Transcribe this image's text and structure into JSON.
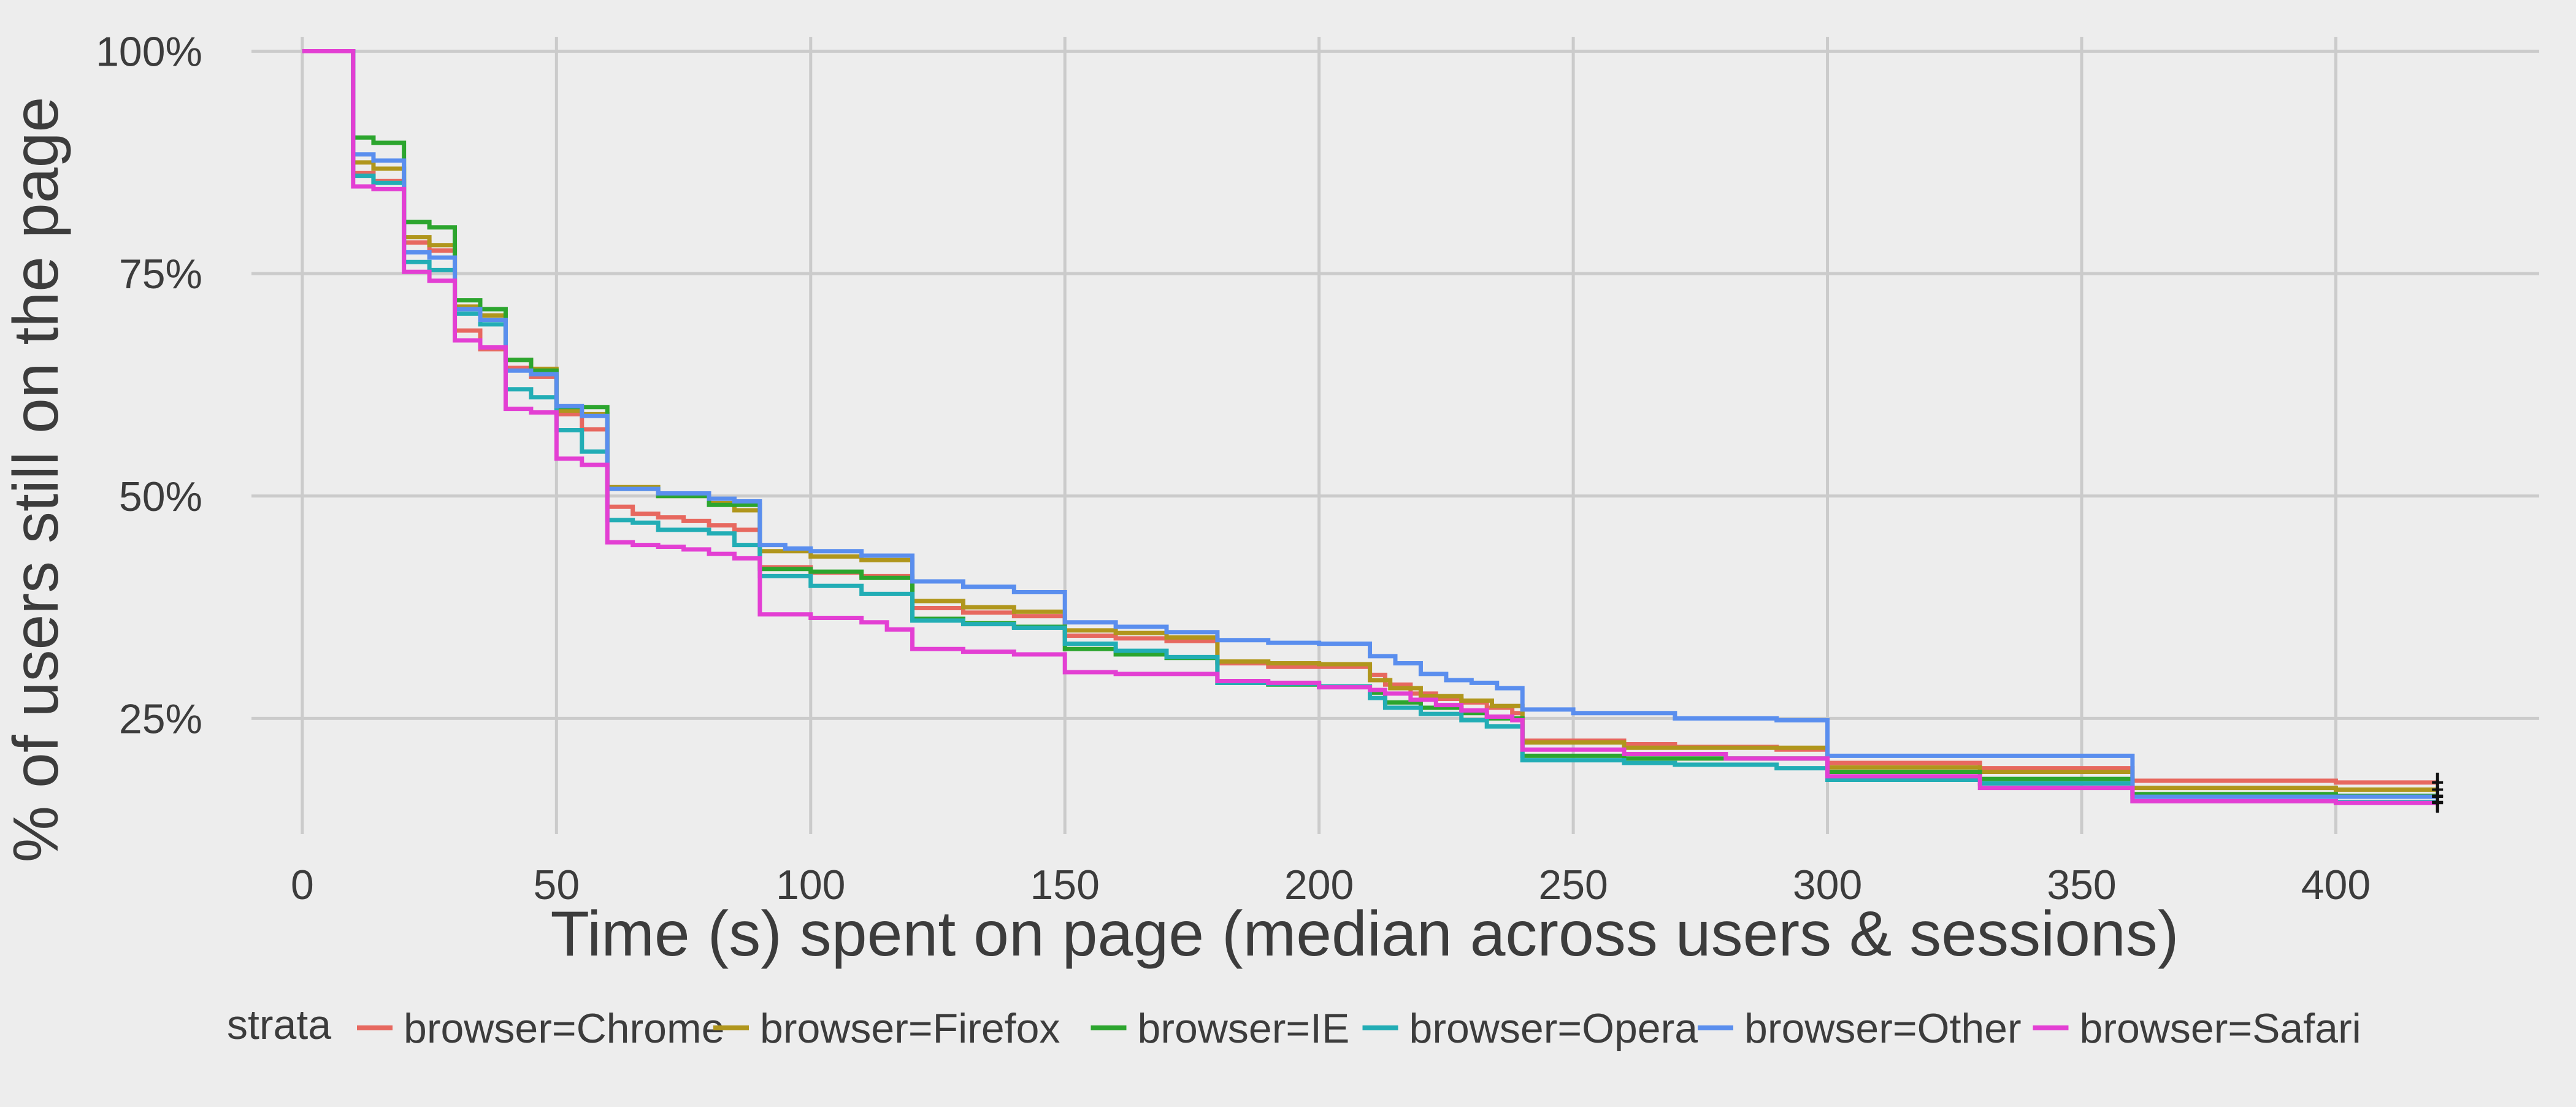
{
  "chart_data": {
    "type": "line",
    "title": "",
    "xlabel": "Time (s) spent on page (median across users & sessions)",
    "ylabel": "% of users still on the page",
    "xlim": [
      -10,
      440
    ],
    "ylim": [
      0.12,
      1.03
    ],
    "x_ticks": [
      0,
      50,
      100,
      150,
      200,
      250,
      300,
      350,
      400
    ],
    "y_ticks": [
      0.25,
      0.5,
      0.75,
      1.0
    ],
    "y_tick_labels": [
      "25%",
      "50%",
      "75%",
      "100%"
    ],
    "x_end": 420,
    "grid": true,
    "legend_position": "bottom",
    "legend_title": "strata",
    "series": [
      {
        "name": "browser=Chrome",
        "color": "#E7685F",
        "steps": [
          [
            0,
            1.0
          ],
          [
            10,
            0.863
          ],
          [
            14,
            0.854
          ],
          [
            20,
            0.785
          ],
          [
            25,
            0.776
          ],
          [
            30,
            0.686
          ],
          [
            35,
            0.665
          ],
          [
            40,
            0.644
          ],
          [
            45,
            0.634
          ],
          [
            50,
            0.592
          ],
          [
            55,
            0.575
          ],
          [
            60,
            0.488
          ],
          [
            65,
            0.48
          ],
          [
            70,
            0.476
          ],
          [
            75,
            0.472
          ],
          [
            80,
            0.467
          ],
          [
            85,
            0.462
          ],
          [
            90,
            0.42
          ],
          [
            100,
            0.414
          ],
          [
            110,
            0.41
          ],
          [
            120,
            0.374
          ],
          [
            130,
            0.369
          ],
          [
            140,
            0.365
          ],
          [
            150,
            0.343
          ],
          [
            160,
            0.34
          ],
          [
            170,
            0.337
          ],
          [
            180,
            0.312
          ],
          [
            190,
            0.308
          ],
          [
            200,
            0.308
          ],
          [
            210,
            0.299
          ],
          [
            213,
            0.288
          ],
          [
            218,
            0.278
          ],
          [
            223,
            0.272
          ],
          [
            228,
            0.268
          ],
          [
            233,
            0.262
          ],
          [
            238,
            0.256
          ],
          [
            240,
            0.225
          ],
          [
            260,
            0.221
          ],
          [
            270,
            0.218
          ],
          [
            290,
            0.215
          ],
          [
            300,
            0.2
          ],
          [
            330,
            0.194
          ],
          [
            360,
            0.18
          ],
          [
            400,
            0.178
          ]
        ]
      },
      {
        "name": "browser=Firefox",
        "color": "#B0961C",
        "steps": [
          [
            0,
            1.0
          ],
          [
            10,
            0.875
          ],
          [
            14,
            0.868
          ],
          [
            20,
            0.791
          ],
          [
            25,
            0.782
          ],
          [
            30,
            0.713
          ],
          [
            35,
            0.703
          ],
          [
            40,
            0.653
          ],
          [
            45,
            0.643
          ],
          [
            50,
            0.596
          ],
          [
            55,
            0.592
          ],
          [
            60,
            0.51
          ],
          [
            70,
            0.5
          ],
          [
            80,
            0.492
          ],
          [
            85,
            0.484
          ],
          [
            90,
            0.438
          ],
          [
            100,
            0.432
          ],
          [
            110,
            0.428
          ],
          [
            120,
            0.382
          ],
          [
            130,
            0.375
          ],
          [
            140,
            0.37
          ],
          [
            150,
            0.349
          ],
          [
            160,
            0.346
          ],
          [
            170,
            0.341
          ],
          [
            180,
            0.314
          ],
          [
            190,
            0.312
          ],
          [
            200,
            0.311
          ],
          [
            210,
            0.293
          ],
          [
            214,
            0.284
          ],
          [
            220,
            0.275
          ],
          [
            228,
            0.27
          ],
          [
            234,
            0.264
          ],
          [
            240,
            0.223
          ],
          [
            260,
            0.217
          ],
          [
            300,
            0.195
          ],
          [
            330,
            0.19
          ],
          [
            360,
            0.172
          ],
          [
            400,
            0.17
          ]
        ]
      },
      {
        "name": "browser=IE",
        "color": "#2CA52E",
        "steps": [
          [
            0,
            1.0
          ],
          [
            10,
            0.903
          ],
          [
            14,
            0.897
          ],
          [
            20,
            0.808
          ],
          [
            25,
            0.802
          ],
          [
            30,
            0.72
          ],
          [
            35,
            0.71
          ],
          [
            40,
            0.653
          ],
          [
            45,
            0.641
          ],
          [
            50,
            0.6
          ],
          [
            60,
            0.508
          ],
          [
            70,
            0.5
          ],
          [
            80,
            0.49
          ],
          [
            90,
            0.418
          ],
          [
            100,
            0.415
          ],
          [
            110,
            0.408
          ],
          [
            120,
            0.362
          ],
          [
            130,
            0.357
          ],
          [
            140,
            0.353
          ],
          [
            150,
            0.328
          ],
          [
            160,
            0.322
          ],
          [
            170,
            0.318
          ],
          [
            180,
            0.29
          ],
          [
            190,
            0.288
          ],
          [
            200,
            0.286
          ],
          [
            210,
            0.279
          ],
          [
            213,
            0.268
          ],
          [
            220,
            0.262
          ],
          [
            228,
            0.256
          ],
          [
            233,
            0.25
          ],
          [
            240,
            0.208
          ],
          [
            260,
            0.205
          ],
          [
            300,
            0.19
          ],
          [
            330,
            0.182
          ],
          [
            360,
            0.165
          ],
          [
            400,
            0.163
          ]
        ]
      },
      {
        "name": "browser=Opera",
        "color": "#22ADB5",
        "steps": [
          [
            0,
            1.0
          ],
          [
            10,
            0.86
          ],
          [
            14,
            0.852
          ],
          [
            20,
            0.763
          ],
          [
            25,
            0.754
          ],
          [
            30,
            0.705
          ],
          [
            35,
            0.693
          ],
          [
            40,
            0.62
          ],
          [
            45,
            0.611
          ],
          [
            50,
            0.574
          ],
          [
            55,
            0.55
          ],
          [
            60,
            0.473
          ],
          [
            65,
            0.47
          ],
          [
            70,
            0.462
          ],
          [
            80,
            0.458
          ],
          [
            85,
            0.445
          ],
          [
            90,
            0.41
          ],
          [
            100,
            0.399
          ],
          [
            110,
            0.39
          ],
          [
            120,
            0.36
          ],
          [
            130,
            0.356
          ],
          [
            140,
            0.352
          ],
          [
            150,
            0.334
          ],
          [
            160,
            0.326
          ],
          [
            170,
            0.319
          ],
          [
            180,
            0.29
          ],
          [
            190,
            0.289
          ],
          [
            200,
            0.286
          ],
          [
            210,
            0.273
          ],
          [
            213,
            0.262
          ],
          [
            220,
            0.255
          ],
          [
            228,
            0.248
          ],
          [
            233,
            0.241
          ],
          [
            240,
            0.203
          ],
          [
            260,
            0.2
          ],
          [
            270,
            0.198
          ],
          [
            290,
            0.194
          ],
          [
            300,
            0.181
          ],
          [
            330,
            0.177
          ],
          [
            360,
            0.157
          ],
          [
            400,
            0.156
          ]
        ]
      },
      {
        "name": "browser=Other",
        "color": "#5A8EEE",
        "steps": [
          [
            0,
            1.0
          ],
          [
            10,
            0.884
          ],
          [
            14,
            0.877
          ],
          [
            20,
            0.774
          ],
          [
            25,
            0.768
          ],
          [
            30,
            0.71
          ],
          [
            35,
            0.698
          ],
          [
            40,
            0.641
          ],
          [
            45,
            0.637
          ],
          [
            50,
            0.601
          ],
          [
            55,
            0.59
          ],
          [
            60,
            0.508
          ],
          [
            70,
            0.503
          ],
          [
            80,
            0.497
          ],
          [
            85,
            0.494
          ],
          [
            90,
            0.445
          ],
          [
            95,
            0.441
          ],
          [
            100,
            0.438
          ],
          [
            110,
            0.433
          ],
          [
            120,
            0.404
          ],
          [
            130,
            0.398
          ],
          [
            140,
            0.392
          ],
          [
            150,
            0.358
          ],
          [
            160,
            0.353
          ],
          [
            170,
            0.347
          ],
          [
            180,
            0.338
          ],
          [
            190,
            0.335
          ],
          [
            200,
            0.334
          ],
          [
            210,
            0.32
          ],
          [
            215,
            0.312
          ],
          [
            220,
            0.3
          ],
          [
            225,
            0.293
          ],
          [
            230,
            0.29
          ],
          [
            235,
            0.284
          ],
          [
            240,
            0.26
          ],
          [
            250,
            0.256
          ],
          [
            270,
            0.25
          ],
          [
            290,
            0.248
          ],
          [
            300,
            0.208
          ],
          [
            360,
            0.162
          ],
          [
            400,
            0.162
          ]
        ]
      },
      {
        "name": "browser=Safari",
        "color": "#E33FD3",
        "steps": [
          [
            0,
            1.0
          ],
          [
            10,
            0.848
          ],
          [
            14,
            0.845
          ],
          [
            20,
            0.752
          ],
          [
            25,
            0.742
          ],
          [
            30,
            0.675
          ],
          [
            35,
            0.667
          ],
          [
            40,
            0.598
          ],
          [
            45,
            0.594
          ],
          [
            50,
            0.542
          ],
          [
            55,
            0.535
          ],
          [
            60,
            0.448
          ],
          [
            65,
            0.445
          ],
          [
            70,
            0.443
          ],
          [
            75,
            0.44
          ],
          [
            80,
            0.435
          ],
          [
            85,
            0.43
          ],
          [
            90,
            0.367
          ],
          [
            100,
            0.363
          ],
          [
            110,
            0.358
          ],
          [
            115,
            0.35
          ],
          [
            120,
            0.328
          ],
          [
            130,
            0.325
          ],
          [
            140,
            0.322
          ],
          [
            150,
            0.302
          ],
          [
            160,
            0.3
          ],
          [
            180,
            0.292
          ],
          [
            190,
            0.29
          ],
          [
            200,
            0.285
          ],
          [
            210,
            0.282
          ],
          [
            213,
            0.278
          ],
          [
            218,
            0.271
          ],
          [
            223,
            0.265
          ],
          [
            228,
            0.259
          ],
          [
            233,
            0.252
          ],
          [
            238,
            0.248
          ],
          [
            240,
            0.215
          ],
          [
            260,
            0.21
          ],
          [
            280,
            0.205
          ],
          [
            300,
            0.185
          ],
          [
            330,
            0.172
          ],
          [
            360,
            0.157
          ],
          [
            400,
            0.155
          ]
        ]
      }
    ]
  }
}
